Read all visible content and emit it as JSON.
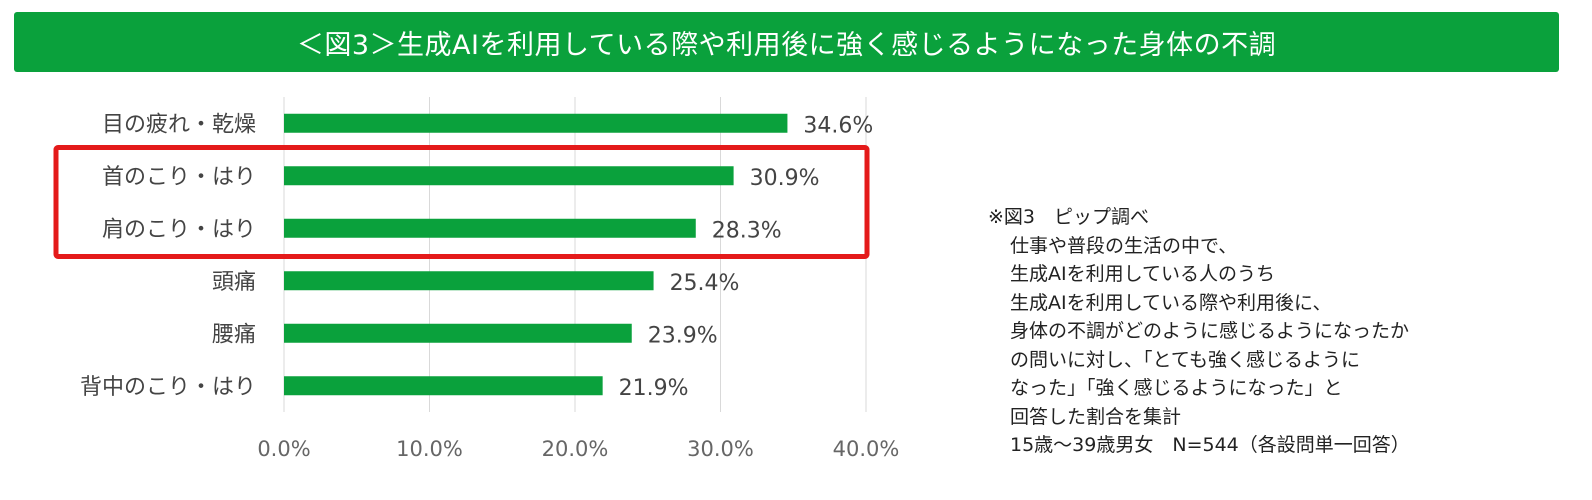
{
  "title": "＜図3＞生成AIを利用している際や利用後に強く感じるようになった身体の不調",
  "colors": {
    "title_bg": "#0aa13c",
    "bar": "#0aa13c",
    "highlight": "#e41a1a",
    "grid": "#d9d9d9",
    "label": "#444444",
    "tick": "#666666"
  },
  "chart_data": {
    "type": "bar",
    "orientation": "horizontal",
    "title": "",
    "xlabel": "",
    "ylabel": "",
    "categories": [
      "目の疲れ・乾燥",
      "首のこり・はり",
      "肩のこり・はり",
      "頭痛",
      "腰痛",
      "背中のこり・はり"
    ],
    "values": [
      34.6,
      30.9,
      28.3,
      25.4,
      23.9,
      21.9
    ],
    "value_labels": [
      "34.6%",
      "30.9%",
      "28.3%",
      "25.4%",
      "23.9%",
      "21.9%"
    ],
    "xlim": [
      0,
      40
    ],
    "xticks": [
      0,
      10,
      20,
      30,
      40
    ],
    "xtick_labels": [
      "0.0%",
      "10.0%",
      "20.0%",
      "30.0%",
      "40.0%"
    ],
    "grid": "vertical",
    "highlighted_categories": [
      "首のこり・はり",
      "肩のこり・はり"
    ]
  },
  "note": {
    "lines": [
      "※図3　ピップ調べ",
      "仕事や普段の生活の中で、",
      "生成AIを利用している人のうち",
      "生成AIを利用している際や利用後に、",
      "身体の不調がどのように感じるようになったか",
      "の問いに対し、「とても強く感じるように",
      "なった」「強く感じるようになった」と",
      "回答した割合を集計",
      "15歳～39歳男女　N=544（各設問単一回答）"
    ]
  }
}
